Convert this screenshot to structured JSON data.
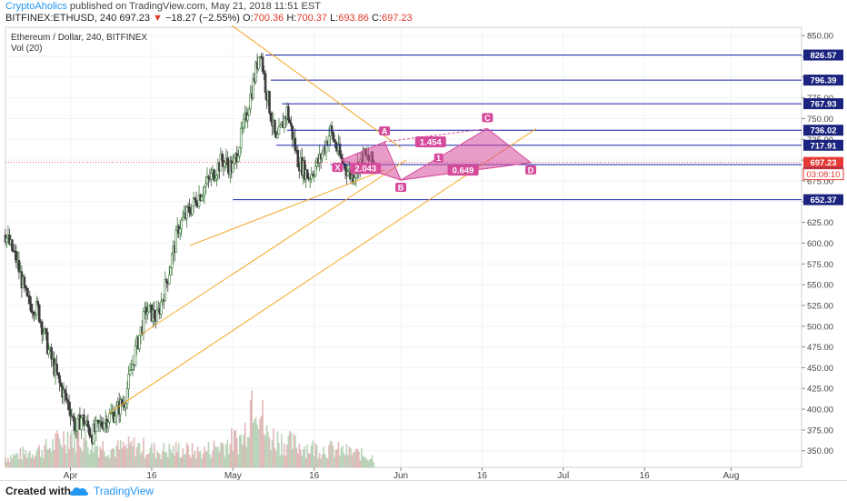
{
  "header": {
    "author": "CryptoAholics",
    "published_text": "published on TradingView.com, May 21, 2018 11:51 EST",
    "symbol": "BITFINEX:ETHUSD, 240",
    "last": "697.23",
    "change": "−18.27 (−2.55%)",
    "o_label": "O:",
    "o": "700.36",
    "h_label": "H:",
    "h": "700.37",
    "l_label": "L:",
    "l": "693.86",
    "c_label": "C:",
    "c": "697.23"
  },
  "legend": {
    "title": "Ethereum / Dollar, 240, BITFINEX",
    "indicator": "Vol (20)"
  },
  "footer": {
    "created_with": "Created with",
    "brand": "TradingView"
  },
  "colors": {
    "up": "#3c7a3c",
    "down": "#3c3c3c",
    "hline": "#1a23a8",
    "trend": "#f5a623",
    "pattern": "#d64a9c",
    "price_line": "#e53935",
    "badge": "#1a237e"
  },
  "chart_data": {
    "type": "candlestick",
    "y_axis": {
      "min": 330,
      "max": 860,
      "ticks": [
        350,
        375,
        400,
        425,
        450,
        475,
        500,
        525,
        550,
        575,
        600,
        625,
        650,
        675,
        700,
        725,
        750,
        775,
        800,
        825,
        850
      ],
      "tick_labels": [
        "350.00",
        "375.00",
        "400.00",
        "425.00",
        "450.00",
        "475.00",
        "500.00",
        "525.00",
        "550.00",
        "575.00",
        "600.00",
        "625.00",
        "650.00",
        "675.00",
        "700.00",
        "725.00",
        "750.00",
        "775.00",
        "800.00",
        "825.00",
        "850.00"
      ]
    },
    "x_axis": {
      "day_min": 0,
      "day_max": 147,
      "ticks": [
        {
          "day": 12,
          "label": "Apr"
        },
        {
          "day": 27,
          "label": "16"
        },
        {
          "day": 42,
          "label": "May"
        },
        {
          "day": 57,
          "label": "16"
        },
        {
          "day": 73,
          "label": "Jun"
        },
        {
          "day": 88,
          "label": "16"
        },
        {
          "day": 103,
          "label": "Jul"
        },
        {
          "day": 118,
          "label": "16"
        },
        {
          "day": 134,
          "label": "Aug"
        }
      ]
    },
    "price_path": [
      [
        0,
        610
      ],
      [
        2,
        580
      ],
      [
        4,
        530
      ],
      [
        6,
        520
      ],
      [
        8,
        470
      ],
      [
        10,
        430
      ],
      [
        12,
        400
      ],
      [
        13,
        375
      ],
      [
        14,
        390
      ],
      [
        16,
        370
      ],
      [
        18,
        385
      ],
      [
        20,
        395
      ],
      [
        22,
        410
      ],
      [
        24,
        470
      ],
      [
        26,
        520
      ],
      [
        28,
        510
      ],
      [
        30,
        560
      ],
      [
        32,
        620
      ],
      [
        34,
        640
      ],
      [
        36,
        660
      ],
      [
        38,
        680
      ],
      [
        40,
        700
      ],
      [
        42,
        690
      ],
      [
        44,
        740
      ],
      [
        46,
        800
      ],
      [
        47,
        835
      ],
      [
        48,
        790
      ],
      [
        50,
        720
      ],
      [
        52,
        760
      ],
      [
        54,
        700
      ],
      [
        56,
        680
      ],
      [
        58,
        700
      ],
      [
        60,
        735
      ],
      [
        62,
        700
      ],
      [
        64,
        680
      ],
      [
        66,
        705
      ],
      [
        68,
        697
      ]
    ],
    "volume_path": [
      [
        0,
        12
      ],
      [
        4,
        18
      ],
      [
        8,
        24
      ],
      [
        12,
        42
      ],
      [
        16,
        30
      ],
      [
        20,
        22
      ],
      [
        24,
        26
      ],
      [
        28,
        20
      ],
      [
        32,
        22
      ],
      [
        36,
        18
      ],
      [
        40,
        28
      ],
      [
        44,
        36
      ],
      [
        46,
        110
      ],
      [
        48,
        40
      ],
      [
        52,
        30
      ],
      [
        56,
        24
      ],
      [
        60,
        22
      ],
      [
        64,
        18
      ],
      [
        68,
        12
      ]
    ],
    "horizontal_levels": [
      {
        "value": 826.57,
        "label": "826.57",
        "start_day": 48
      },
      {
        "value": 796.39,
        "label": "796.39",
        "start_day": 49
      },
      {
        "value": 767.93,
        "label": "767.93",
        "start_day": 51
      },
      {
        "value": 736.02,
        "label": "736.02",
        "start_day": 52
      },
      {
        "value": 717.91,
        "label": "717.91",
        "start_day": 50
      },
      {
        "value": 694.63,
        "label": "694.63",
        "start_day": 60
      },
      {
        "value": 652.37,
        "label": "652.37",
        "start_day": 42
      }
    ],
    "current_price": {
      "value": 697.23,
      "label": "697.23",
      "countdown": "03:08:10"
    },
    "trendlines": [
      {
        "from": [
          38,
          880
        ],
        "to": [
          73,
          715
        ]
      },
      {
        "from": [
          19,
          395
        ],
        "to": [
          98,
          738
        ]
      },
      {
        "from": [
          25,
          490
        ],
        "to": [
          74,
          700
        ]
      },
      {
        "from": [
          34,
          597
        ],
        "to": [
          70,
          688
        ]
      }
    ],
    "pattern": {
      "points": [
        {
          "name": "X",
          "day": 62,
          "value": 700
        },
        {
          "name": "A",
          "day": 70,
          "value": 722
        },
        {
          "name": "B",
          "day": 73,
          "value": 676
        },
        {
          "name": "C",
          "day": 89,
          "value": 738
        },
        {
          "name": "D",
          "day": 97,
          "value": 697
        }
      ],
      "center_label": "1",
      "ratios": [
        {
          "label": "2.043",
          "day": 66.5,
          "value": 690
        },
        {
          "label": "1.454",
          "day": 78.5,
          "value": 722
        },
        {
          "label": "0.649",
          "day": 84.5,
          "value": 688
        }
      ]
    }
  }
}
